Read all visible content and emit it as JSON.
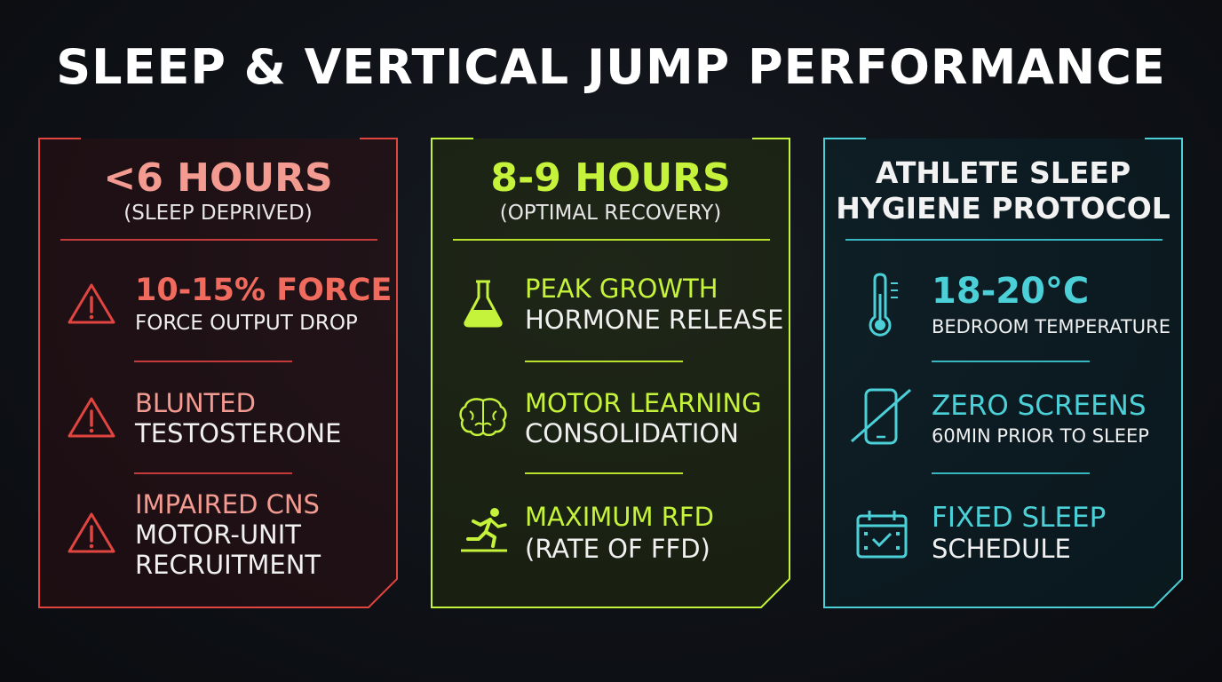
{
  "title": "SLEEP & VERTICAL JUMP PERFORMANCE",
  "colors": {
    "red": "#e0453f",
    "red_text": "#f39a91",
    "green": "#c5f23a",
    "teal": "#4bd0d8",
    "background": "#0e1116"
  },
  "panels": [
    {
      "heading": "<6 HOURS",
      "subheading": "(SLEEP DEPRIVED)",
      "items": [
        {
          "icon": "warning-icon",
          "line1": "10-15% FORCE",
          "line2": "FORCE OUTPUT DROP"
        },
        {
          "icon": "warning-icon",
          "line1": "BLUNTED",
          "line2": "TESTOSTERONE"
        },
        {
          "icon": "warning-icon",
          "line1": "IMPAIRED CNS",
          "line2": "MOTOR-UNIT",
          "line3": "RECRUITMENT"
        }
      ]
    },
    {
      "heading": "8-9 HOURS",
      "subheading": "(OPTIMAL RECOVERY)",
      "items": [
        {
          "icon": "flask-icon",
          "line1": "PEAK GROWTH",
          "line2": "HORMONE RELEASE"
        },
        {
          "icon": "brain-icon",
          "line1": "MOTOR LEARNING",
          "line2": "CONSOLIDATION"
        },
        {
          "icon": "sprinter-icon",
          "line1": "MAXIMUM RFD",
          "line2": "(RATE OF FFD)"
        }
      ]
    },
    {
      "heading_line1": "ATHLETE SLEEP",
      "heading_line2": "HYGIENE PROTOCOL",
      "items": [
        {
          "icon": "thermometer-icon",
          "line1": "18-20°C",
          "line2": "BEDROOM TEMPERATURE"
        },
        {
          "icon": "no-phone-icon",
          "line1": "ZERO SCREENS",
          "line2": "60MIN PRIOR TO SLEEP"
        },
        {
          "icon": "calendar-icon",
          "line1": "FIXED SLEEP",
          "line2": "SCHEDULE"
        }
      ]
    }
  ]
}
